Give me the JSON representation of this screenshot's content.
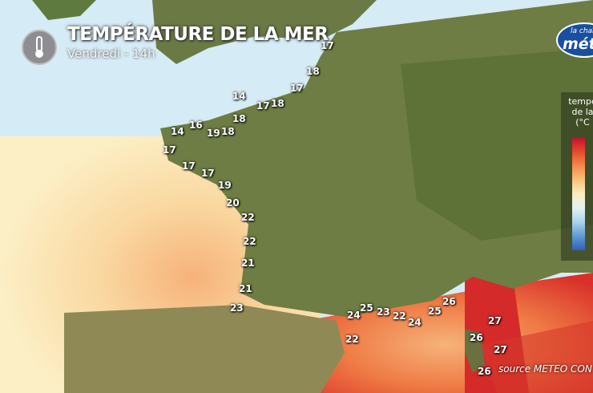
{
  "header": {
    "title": "TEMPÉRATURE DE LA MER",
    "subtitle": "Vendredi - 14h",
    "icon": "thermometer-icon"
  },
  "logo": {
    "line1": "la chaî",
    "line2": "méte"
  },
  "legend": {
    "title": "tempé\nde la\n(°C",
    "colors": [
      "#c8102e",
      "#f58a4a",
      "#fbeec0",
      "#a9d3ec",
      "#2f5fb8"
    ]
  },
  "source": "source METEO CON",
  "labels": [
    "17",
    "18",
    "17",
    "17",
    "18",
    "14",
    "18",
    "14",
    "16",
    "19",
    "18",
    "17",
    "17",
    "17",
    "19",
    "20",
    "22",
    "22",
    "21",
    "21",
    "23",
    "24",
    "25",
    "23",
    "22",
    "24",
    "25",
    "26",
    "22",
    "27",
    "26",
    "27",
    "26"
  ]
}
